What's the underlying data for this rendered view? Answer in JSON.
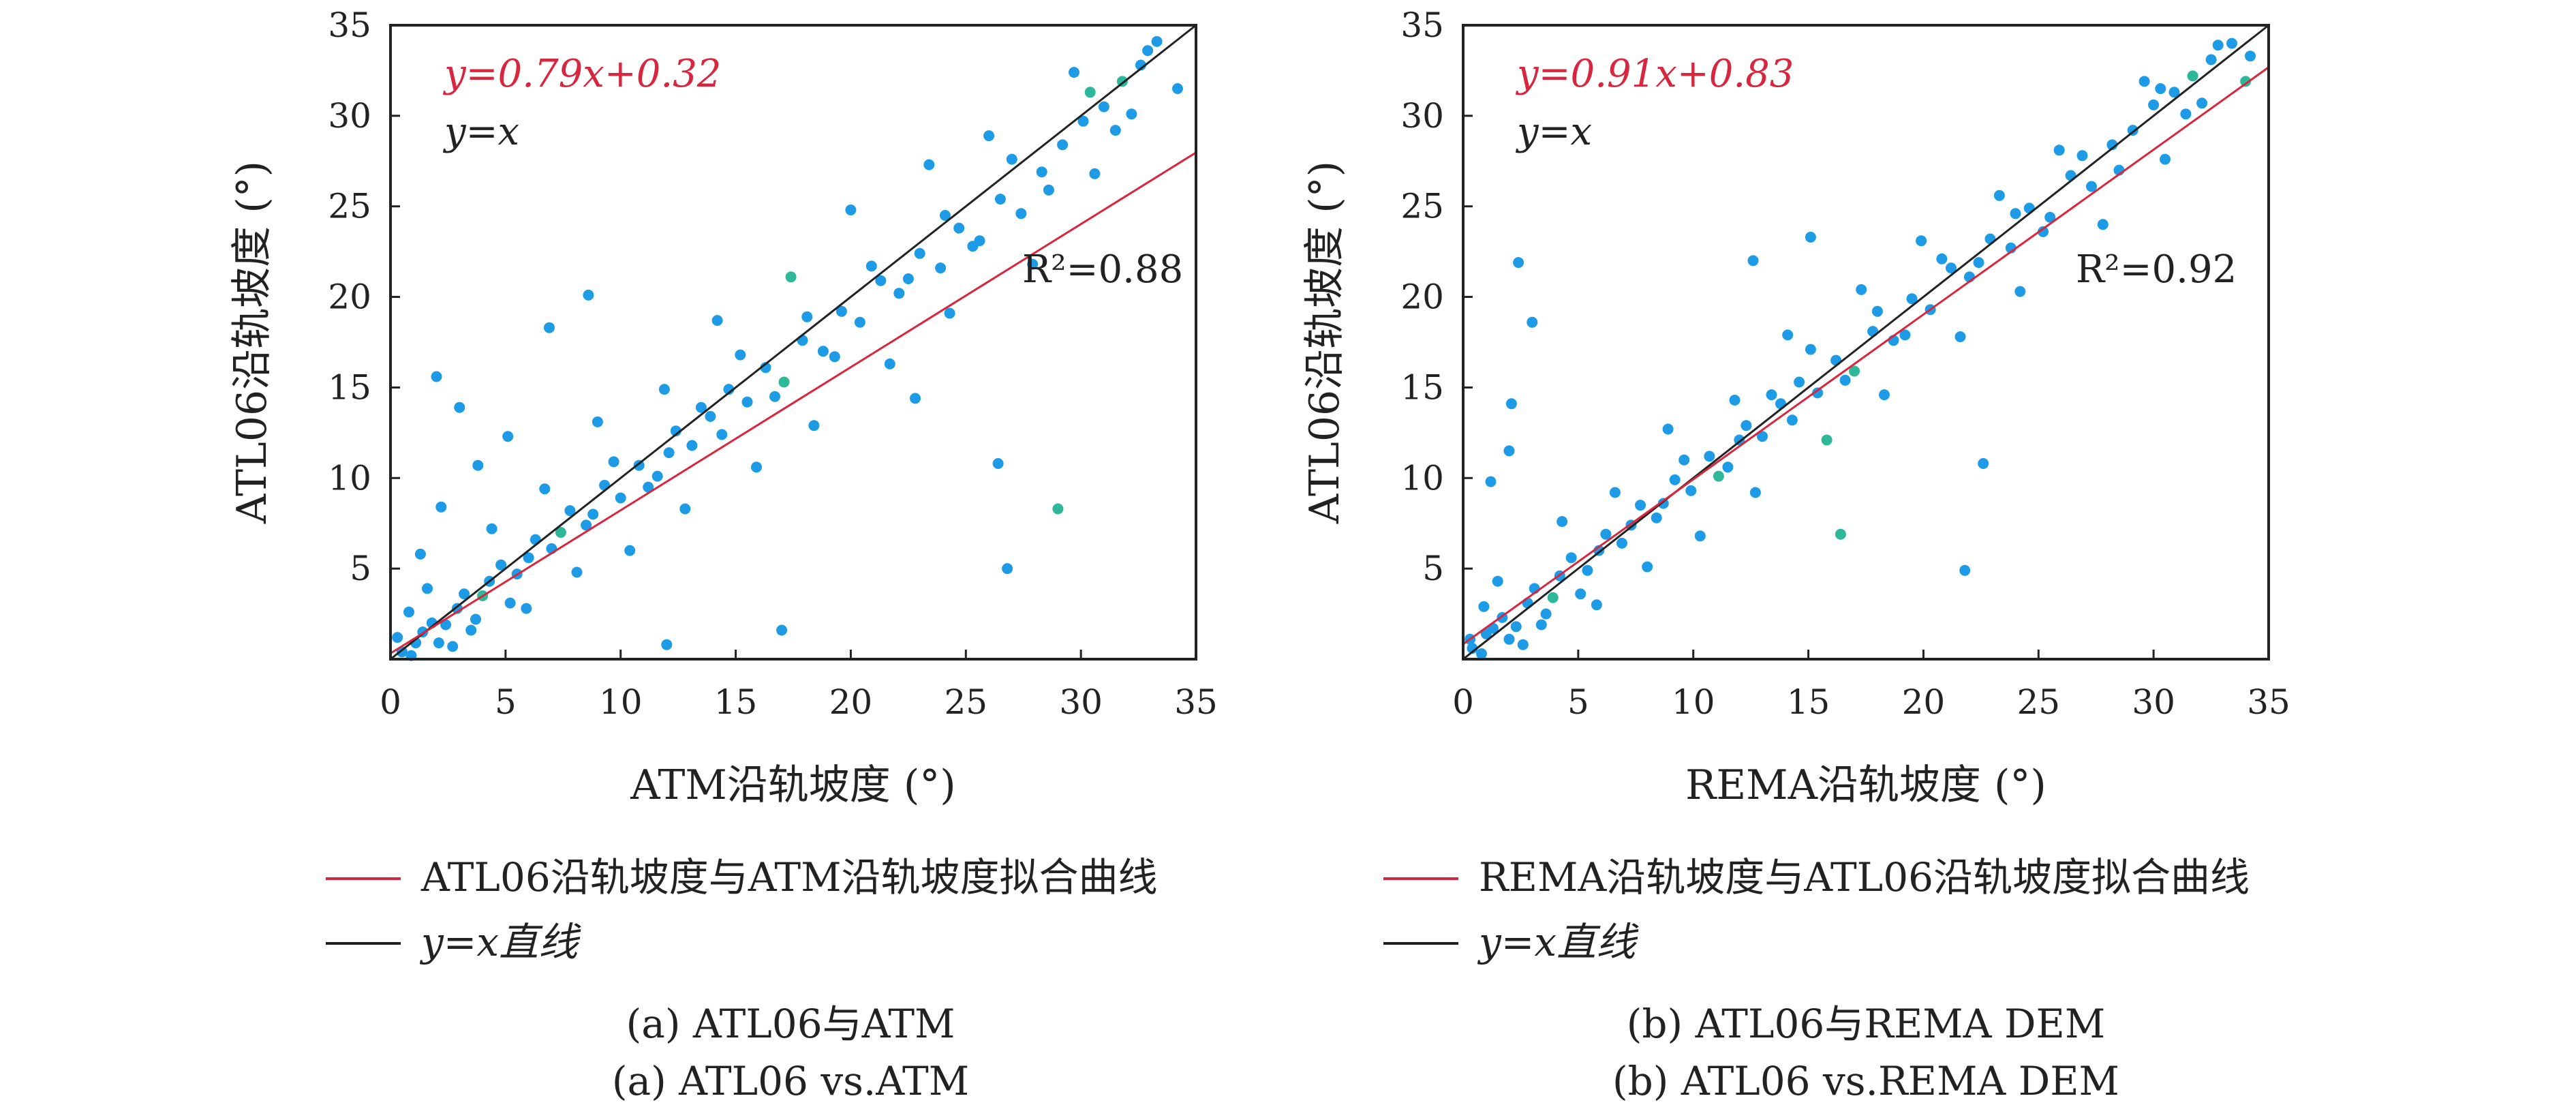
{
  "colors": {
    "points": "#1e9be6",
    "points_alt": "#2eb89a",
    "fit": "#d7263d",
    "identity": "#222222"
  },
  "chart_data": [
    {
      "type": "scatter",
      "id": "a",
      "xlabel": "ATM沿轨坡度 (°)",
      "ylabel": "ATL06沿轨坡度 (°)",
      "xlim": [
        0,
        35
      ],
      "ylim": [
        0,
        35
      ],
      "xticks": [
        0,
        5,
        10,
        15,
        20,
        25,
        30,
        35
      ],
      "yticks": [
        5,
        10,
        15,
        20,
        25,
        30,
        35
      ],
      "fit": {
        "slope": 0.79,
        "intercept": 0.32,
        "label": "y=0.79x+0.32"
      },
      "identity_label": "y=x",
      "r2_label": "R²=0.88",
      "legend": [
        "ATL06沿轨坡度与ATM沿轨坡度拟合曲线",
        "y=x直线"
      ],
      "caption_cn": "(a) ATL06与ATM",
      "caption_en": "(a) ATL06 vs.ATM",
      "points": [
        [
          0.5,
          0.4
        ],
        [
          1.1,
          0.9
        ],
        [
          1.8,
          2.0
        ],
        [
          2.4,
          1.9
        ],
        [
          3.2,
          3.6
        ],
        [
          4.0,
          3.5
        ],
        [
          4.8,
          5.2
        ],
        [
          5.5,
          4.7
        ],
        [
          6.3,
          6.6
        ],
        [
          7.0,
          6.1
        ],
        [
          7.8,
          8.2
        ],
        [
          8.5,
          7.4
        ],
        [
          9.3,
          9.6
        ],
        [
          10.0,
          8.9
        ],
        [
          10.8,
          10.7
        ],
        [
          11.6,
          10.1
        ],
        [
          12.4,
          12.6
        ],
        [
          13.1,
          11.8
        ],
        [
          13.9,
          13.4
        ],
        [
          14.7,
          14.9
        ],
        [
          15.5,
          14.2
        ],
        [
          16.3,
          16.1
        ],
        [
          17.1,
          15.3
        ],
        [
          17.9,
          17.6
        ],
        [
          18.8,
          17.0
        ],
        [
          19.6,
          19.2
        ],
        [
          20.4,
          18.6
        ],
        [
          21.3,
          20.9
        ],
        [
          22.1,
          20.2
        ],
        [
          23.0,
          22.4
        ],
        [
          23.9,
          21.6
        ],
        [
          24.7,
          23.8
        ],
        [
          25.6,
          23.1
        ],
        [
          26.5,
          25.4
        ],
        [
          27.4,
          24.6
        ],
        [
          28.3,
          26.9
        ],
        [
          29.2,
          28.4
        ],
        [
          30.1,
          29.7
        ],
        [
          31.0,
          30.5
        ],
        [
          31.8,
          31.9
        ],
        [
          32.6,
          32.8
        ],
        [
          33.3,
          34.1
        ],
        [
          0.8,
          2.6
        ],
        [
          1.6,
          3.9
        ],
        [
          2.7,
          0.7
        ],
        [
          3.5,
          1.6
        ],
        [
          4.4,
          7.2
        ],
        [
          5.9,
          2.8
        ],
        [
          6.7,
          9.4
        ],
        [
          8.1,
          4.8
        ],
        [
          9.0,
          13.1
        ],
        [
          10.4,
          6.0
        ],
        [
          11.9,
          14.9
        ],
        [
          12.8,
          8.3
        ],
        [
          14.2,
          18.7
        ],
        [
          15.9,
          10.6
        ],
        [
          17.4,
          21.1
        ],
        [
          18.4,
          12.9
        ],
        [
          20.0,
          24.8
        ],
        [
          21.7,
          16.3
        ],
        [
          23.4,
          27.3
        ],
        [
          24.3,
          19.1
        ],
        [
          26.0,
          28.9
        ],
        [
          27.9,
          21.8
        ],
        [
          29.7,
          32.4
        ],
        [
          30.6,
          26.8
        ],
        [
          32.2,
          30.1
        ],
        [
          2.0,
          15.6
        ],
        [
          3.0,
          13.9
        ],
        [
          8.6,
          20.1
        ],
        [
          6.9,
          18.3
        ],
        [
          22.8,
          14.4
        ],
        [
          26.4,
          10.8
        ],
        [
          29.0,
          8.3
        ],
        [
          26.8,
          5.0
        ],
        [
          17.0,
          1.6
        ],
        [
          12.0,
          0.8
        ],
        [
          1.3,
          5.8
        ],
        [
          2.2,
          8.4
        ],
        [
          3.8,
          10.7
        ],
        [
          5.1,
          12.3
        ],
        [
          0.3,
          1.2
        ],
        [
          0.9,
          0.2
        ],
        [
          1.4,
          1.5
        ],
        [
          2.1,
          0.9
        ],
        [
          2.9,
          2.8
        ],
        [
          3.7,
          2.2
        ],
        [
          4.3,
          4.3
        ],
        [
          5.2,
          3.1
        ],
        [
          6.0,
          5.6
        ],
        [
          7.4,
          7.0
        ],
        [
          8.8,
          8.0
        ],
        [
          9.7,
          10.9
        ],
        [
          11.2,
          9.5
        ],
        [
          12.1,
          11.4
        ],
        [
          13.5,
          13.9
        ],
        [
          14.4,
          12.4
        ],
        [
          15.2,
          16.8
        ],
        [
          16.7,
          14.5
        ],
        [
          18.1,
          18.9
        ],
        [
          19.3,
          16.7
        ],
        [
          20.9,
          21.7
        ],
        [
          22.5,
          21.0
        ],
        [
          24.1,
          24.5
        ],
        [
          25.3,
          22.8
        ],
        [
          27.0,
          27.6
        ],
        [
          28.6,
          25.9
        ],
        [
          30.4,
          31.3
        ],
        [
          31.5,
          29.2
        ],
        [
          32.9,
          33.6
        ],
        [
          34.2,
          31.5
        ]
      ]
    },
    {
      "type": "scatter",
      "id": "b",
      "xlabel": "REMA沿轨坡度 (°)",
      "ylabel": "ATL06沿轨坡度 (°)",
      "xlim": [
        0,
        35
      ],
      "ylim": [
        0,
        35
      ],
      "xticks": [
        0,
        5,
        10,
        15,
        20,
        25,
        30,
        35
      ],
      "yticks": [
        5,
        10,
        15,
        20,
        25,
        30,
        35
      ],
      "fit": {
        "slope": 0.91,
        "intercept": 0.83,
        "label": "y=0.91x+0.83"
      },
      "identity_label": "y=x",
      "r2_label": "R²=0.92",
      "legend": [
        "REMA沿轨坡度与ATL06沿轨坡度拟合曲线",
        "y=x直线"
      ],
      "caption_cn": "(b) ATL06与REMA DEM",
      "caption_en": "(b) ATL06 vs.REMA DEM",
      "points": [
        [
          0.4,
          0.6
        ],
        [
          1.0,
          1.4
        ],
        [
          1.7,
          2.3
        ],
        [
          2.3,
          1.8
        ],
        [
          3.1,
          3.9
        ],
        [
          3.9,
          3.4
        ],
        [
          4.7,
          5.6
        ],
        [
          5.4,
          4.9
        ],
        [
          6.2,
          6.9
        ],
        [
          6.9,
          6.4
        ],
        [
          7.7,
          8.5
        ],
        [
          8.4,
          7.8
        ],
        [
          9.2,
          9.9
        ],
        [
          9.9,
          9.3
        ],
        [
          10.7,
          11.2
        ],
        [
          11.5,
          10.6
        ],
        [
          12.3,
          12.9
        ],
        [
          13.0,
          12.3
        ],
        [
          13.8,
          14.1
        ],
        [
          14.6,
          15.3
        ],
        [
          15.4,
          14.7
        ],
        [
          16.2,
          16.5
        ],
        [
          17.0,
          15.9
        ],
        [
          17.8,
          18.1
        ],
        [
          18.7,
          17.6
        ],
        [
          19.5,
          19.9
        ],
        [
          20.3,
          19.3
        ],
        [
          21.2,
          21.6
        ],
        [
          22.0,
          21.1
        ],
        [
          22.9,
          23.2
        ],
        [
          23.8,
          22.7
        ],
        [
          24.6,
          24.9
        ],
        [
          25.5,
          24.4
        ],
        [
          26.4,
          26.7
        ],
        [
          27.3,
          26.1
        ],
        [
          28.2,
          28.4
        ],
        [
          29.1,
          29.2
        ],
        [
          30.0,
          30.6
        ],
        [
          30.9,
          31.3
        ],
        [
          31.7,
          32.2
        ],
        [
          32.5,
          33.1
        ],
        [
          33.4,
          34.0
        ],
        [
          34.2,
          33.3
        ],
        [
          0.9,
          2.9
        ],
        [
          1.5,
          4.3
        ],
        [
          2.6,
          0.8
        ],
        [
          3.4,
          1.9
        ],
        [
          4.3,
          7.6
        ],
        [
          5.8,
          3.0
        ],
        [
          6.6,
          9.2
        ],
        [
          8.0,
          5.1
        ],
        [
          8.9,
          12.7
        ],
        [
          10.3,
          6.8
        ],
        [
          11.8,
          14.3
        ],
        [
          12.7,
          9.2
        ],
        [
          14.1,
          17.9
        ],
        [
          15.8,
          12.1
        ],
        [
          17.3,
          20.4
        ],
        [
          18.3,
          14.6
        ],
        [
          19.9,
          23.1
        ],
        [
          21.6,
          17.8
        ],
        [
          23.3,
          25.6
        ],
        [
          24.2,
          20.3
        ],
        [
          25.9,
          28.1
        ],
        [
          27.8,
          24.0
        ],
        [
          29.6,
          31.9
        ],
        [
          30.5,
          27.6
        ],
        [
          32.1,
          30.7
        ],
        [
          2.4,
          21.9
        ],
        [
          2.1,
          14.1
        ],
        [
          3.0,
          18.6
        ],
        [
          22.6,
          10.8
        ],
        [
          21.8,
          4.9
        ],
        [
          16.4,
          6.9
        ],
        [
          15.1,
          23.3
        ],
        [
          12.6,
          22.0
        ],
        [
          1.2,
          9.8
        ],
        [
          2.0,
          11.5
        ],
        [
          0.3,
          1.1
        ],
        [
          0.8,
          0.3
        ],
        [
          1.3,
          1.7
        ],
        [
          2.0,
          1.1
        ],
        [
          2.8,
          3.1
        ],
        [
          3.6,
          2.5
        ],
        [
          4.2,
          4.6
        ],
        [
          5.1,
          3.6
        ],
        [
          5.9,
          6.0
        ],
        [
          7.3,
          7.4
        ],
        [
          8.7,
          8.6
        ],
        [
          9.6,
          11.0
        ],
        [
          11.1,
          10.1
        ],
        [
          12.0,
          12.1
        ],
        [
          13.4,
          14.6
        ],
        [
          14.3,
          13.2
        ],
        [
          15.1,
          17.1
        ],
        [
          16.6,
          15.4
        ],
        [
          18.0,
          19.2
        ],
        [
          19.2,
          17.9
        ],
        [
          20.8,
          22.1
        ],
        [
          22.4,
          21.9
        ],
        [
          24.0,
          24.6
        ],
        [
          25.2,
          23.6
        ],
        [
          26.9,
          27.8
        ],
        [
          28.5,
          27.0
        ],
        [
          30.3,
          31.5
        ],
        [
          31.4,
          30.1
        ],
        [
          32.8,
          33.9
        ],
        [
          34.0,
          31.9
        ]
      ]
    }
  ]
}
